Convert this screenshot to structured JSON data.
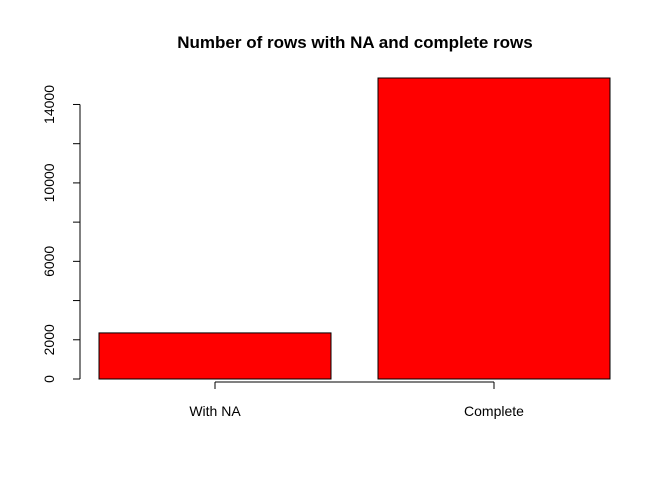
{
  "chart_data": {
    "type": "bar",
    "title": "Number of rows with NA and complete rows",
    "xlabel": "",
    "ylabel": "",
    "categories": [
      "With NA",
      "Complete"
    ],
    "values": [
      2350,
      15350
    ],
    "ylim": [
      0,
      15350
    ],
    "yticks": [
      0,
      2000,
      6000,
      10000,
      14000
    ],
    "bar_color": "#ff0000",
    "grid": false
  }
}
